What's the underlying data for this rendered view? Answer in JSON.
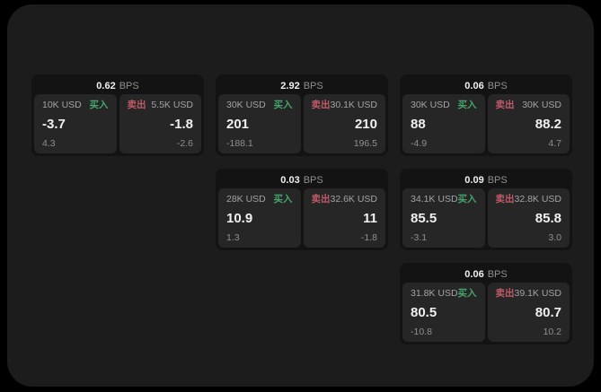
{
  "labels": {
    "buy": "买入",
    "sell": "卖出",
    "bps_unit": "BPS"
  },
  "colors": {
    "page_bg": "#000000",
    "panel_bg": "#1c1c1c",
    "card_bg": "#131313",
    "tile_bg": "#262626",
    "value_text": "#f0f0f0",
    "muted_text": "#8f8f8f",
    "buy": "#46a46c",
    "sell": "#c05a68"
  },
  "cards": [
    {
      "bps": "0.62",
      "buy": {
        "amount": "10K USD",
        "value": "-3.7",
        "delta": "4.3"
      },
      "sell": {
        "amount": "5.5K USD",
        "value": "-1.8",
        "delta": "-2.6"
      }
    },
    {
      "bps": "2.92",
      "buy": {
        "amount": "30K USD",
        "value": "201",
        "delta": "-188.1"
      },
      "sell": {
        "amount": "30.1K USD",
        "value": "210",
        "delta": "196.5"
      }
    },
    {
      "bps": "0.06",
      "buy": {
        "amount": "30K USD",
        "value": "88",
        "delta": "-4.9"
      },
      "sell": {
        "amount": "30K USD",
        "value": "88.2",
        "delta": "4.7"
      }
    },
    {
      "bps": "0.03",
      "buy": {
        "amount": "28K USD",
        "value": "10.9",
        "delta": "1.3"
      },
      "sell": {
        "amount": "32.6K USD",
        "value": "11",
        "delta": "-1.8"
      }
    },
    {
      "bps": "0.09",
      "buy": {
        "amount": "34.1K USD",
        "value": "85.5",
        "delta": "-3.1"
      },
      "sell": {
        "amount": "32.8K USD",
        "value": "85.8",
        "delta": "3.0"
      }
    },
    {
      "bps": "0.06",
      "buy": {
        "amount": "31.8K USD",
        "value": "80.5",
        "delta": "-10.8"
      },
      "sell": {
        "amount": "39.1K USD",
        "value": "80.7",
        "delta": "10.2"
      }
    }
  ]
}
